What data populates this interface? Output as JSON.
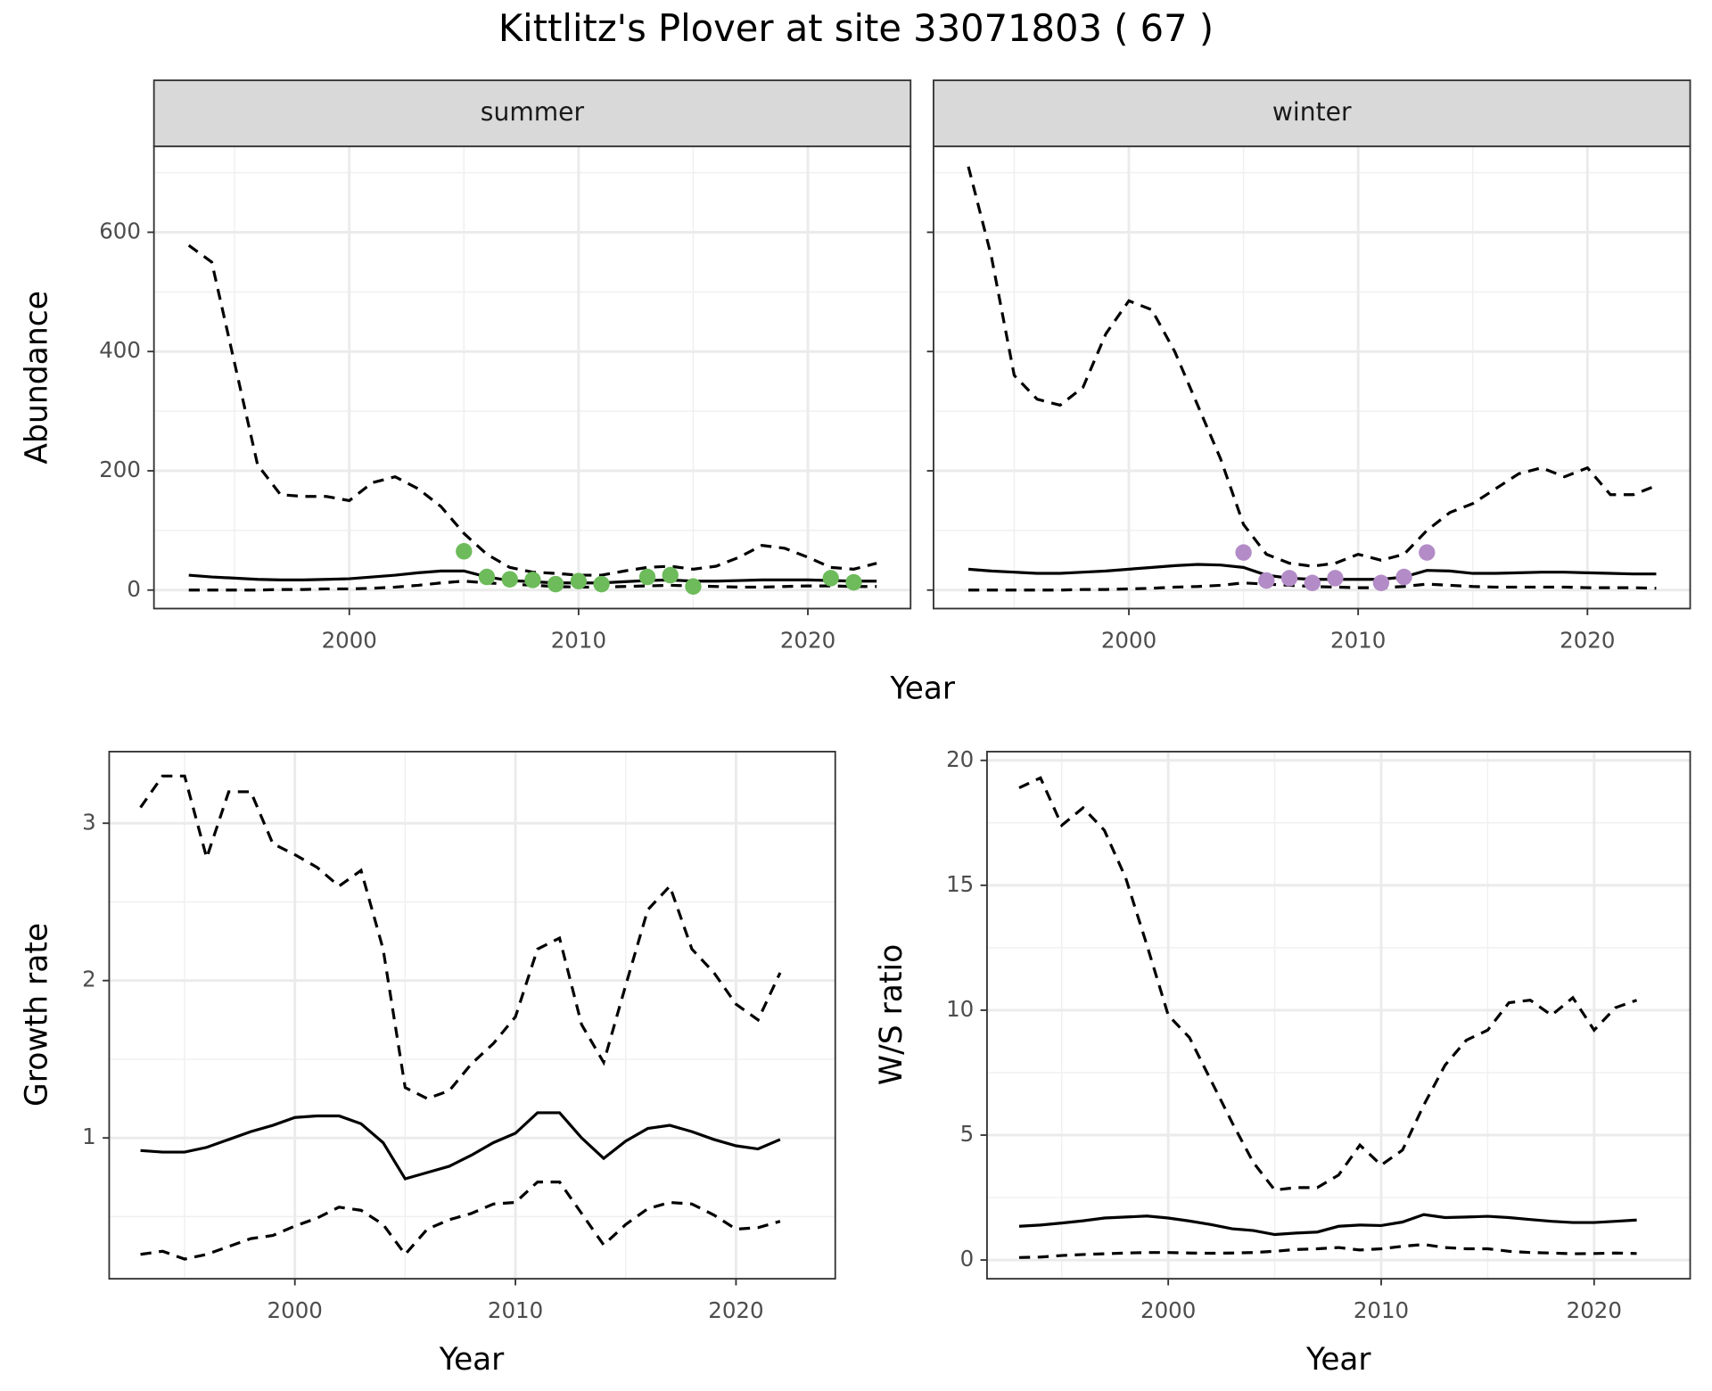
{
  "title": "Kittlitz's Plover at site 33071803 ( 67 )",
  "chart_data": [
    {
      "type": "line",
      "strip": "summer",
      "ylabel": "Abundance",
      "xlabel": "Year",
      "xlim": [
        1991.48,
        2024.48
      ],
      "ylim": [
        -31,
        744
      ],
      "xticks": [
        2000,
        2010,
        2020
      ],
      "minor_xticks": [
        1995,
        2005,
        2015
      ],
      "yticks": [
        0,
        200,
        400,
        600
      ],
      "minor_yticks": [
        100,
        300,
        500,
        700
      ],
      "show_ytick_labels": true,
      "grid": true,
      "x": [
        1993,
        1994,
        1995,
        1996,
        1997,
        1998,
        1999,
        2000,
        2001,
        2002,
        2003,
        2004,
        2005,
        2006,
        2007,
        2008,
        2009,
        2010,
        2011,
        2012,
        2013,
        2014,
        2015,
        2016,
        2017,
        2018,
        2019,
        2020,
        2021,
        2022,
        2023
      ],
      "series": [
        {
          "color": "#000000",
          "linestyle": "dashed",
          "values": [
            578,
            550,
            380,
            210,
            160,
            157,
            157,
            150,
            180,
            190,
            170,
            140,
            95,
            60,
            38,
            30,
            28,
            25,
            25,
            32,
            38,
            40,
            35,
            40,
            55,
            75,
            70,
            55,
            38,
            35,
            45
          ]
        },
        {
          "color": "#000000",
          "linestyle": "solid",
          "values": [
            25,
            22,
            20,
            18,
            17,
            17,
            18,
            19,
            22,
            25,
            29,
            32,
            32,
            22,
            16,
            14,
            12,
            12,
            12,
            14,
            16,
            17,
            15,
            15,
            16,
            17,
            17,
            17,
            16,
            15,
            15
          ]
        },
        {
          "color": "#000000",
          "linestyle": "dashed",
          "values": [
            0,
            0,
            0,
            0,
            1,
            1,
            2,
            2,
            3,
            5,
            8,
            12,
            15,
            12,
            10,
            8,
            6,
            5,
            5,
            6,
            7,
            8,
            7,
            6,
            5,
            5,
            6,
            7,
            7,
            6,
            6
          ]
        }
      ],
      "points": {
        "color": "#6dbb5b",
        "x": [
          2005,
          2006,
          2007,
          2008,
          2009,
          2010,
          2011,
          2013,
          2014,
          2015,
          2021,
          2022
        ],
        "values": [
          65,
          22,
          18,
          17,
          10,
          15,
          10,
          22,
          25,
          6,
          20,
          13
        ]
      }
    },
    {
      "type": "line",
      "strip": "winter",
      "xlim": [
        1991.48,
        2024.48
      ],
      "ylim": [
        -31,
        744
      ],
      "xticks": [
        2000,
        2010,
        2020
      ],
      "minor_xticks": [
        1995,
        2005,
        2015
      ],
      "yticks": [
        0,
        200,
        400,
        600
      ],
      "minor_yticks": [
        100,
        300,
        500,
        700
      ],
      "show_ytick_labels": false,
      "grid": true,
      "x": [
        1993,
        1994,
        1995,
        1996,
        1997,
        1998,
        1999,
        2000,
        2001,
        2002,
        2003,
        2004,
        2005,
        2006,
        2007,
        2008,
        2009,
        2010,
        2011,
        2012,
        2013,
        2014,
        2015,
        2016,
        2017,
        2018,
        2019,
        2020,
        2021,
        2022,
        2023
      ],
      "series": [
        {
          "color": "#000000",
          "linestyle": "dashed",
          "values": [
            710,
            560,
            360,
            320,
            310,
            340,
            430,
            485,
            470,
            400,
            310,
            220,
            110,
            60,
            45,
            40,
            45,
            60,
            50,
            60,
            100,
            130,
            145,
            170,
            195,
            205,
            190,
            205,
            160,
            160,
            175
          ]
        },
        {
          "color": "#000000",
          "linestyle": "solid",
          "values": [
            35,
            32,
            30,
            28,
            28,
            30,
            32,
            35,
            38,
            41,
            43,
            42,
            38,
            25,
            20,
            18,
            18,
            18,
            18,
            22,
            33,
            32,
            28,
            28,
            29,
            30,
            30,
            29,
            28,
            27,
            27
          ]
        },
        {
          "color": "#000000",
          "linestyle": "dashed",
          "values": [
            0,
            0,
            0,
            0,
            0,
            1,
            1,
            2,
            3,
            5,
            6,
            8,
            12,
            10,
            8,
            6,
            5,
            4,
            4,
            6,
            10,
            8,
            6,
            5,
            5,
            5,
            5,
            4,
            4,
            4,
            3
          ]
        }
      ],
      "points": {
        "color": "#b38cc7",
        "x": [
          2005,
          2006,
          2007,
          2008,
          2009,
          2011,
          2012,
          2013
        ],
        "values": [
          63,
          16,
          20,
          12,
          20,
          12,
          22,
          63
        ]
      }
    },
    {
      "type": "line",
      "ylabel": "Growth rate",
      "xlabel": "Year",
      "xlim": [
        1991.58,
        2024.5
      ],
      "ylim": [
        0.105,
        3.455
      ],
      "xticks": [
        2000,
        2010,
        2020
      ],
      "minor_xticks": [
        1995,
        2005,
        2015
      ],
      "yticks": [
        1,
        2,
        3
      ],
      "minor_yticks": [
        0.5,
        1.5,
        2.5
      ],
      "show_ytick_labels": true,
      "grid": true,
      "x": [
        1993,
        1994,
        1995,
        1996,
        1997,
        1998,
        1999,
        2000,
        2001,
        2002,
        2003,
        2004,
        2005,
        2006,
        2007,
        2008,
        2009,
        2010,
        2011,
        2012,
        2013,
        2014,
        2015,
        2016,
        2017,
        2018,
        2019,
        2020,
        2021,
        2022
      ],
      "series": [
        {
          "color": "#000000",
          "linestyle": "dashed",
          "values": [
            3.1,
            3.3,
            3.3,
            2.78,
            3.2,
            3.2,
            2.87,
            2.8,
            2.72,
            2.6,
            2.7,
            2.2,
            1.32,
            1.25,
            1.3,
            1.47,
            1.6,
            1.77,
            2.2,
            2.27,
            1.72,
            1.48,
            1.97,
            2.45,
            2.6,
            2.2,
            2.05,
            1.85,
            1.75,
            2.05
          ]
        },
        {
          "color": "#000000",
          "linestyle": "solid",
          "values": [
            0.92,
            0.91,
            0.91,
            0.94,
            0.99,
            1.04,
            1.08,
            1.13,
            1.14,
            1.14,
            1.09,
            0.97,
            0.74,
            0.78,
            0.82,
            0.89,
            0.97,
            1.03,
            1.16,
            1.16,
            1.0,
            0.87,
            0.98,
            1.06,
            1.08,
            1.04,
            0.99,
            0.95,
            0.93,
            0.99
          ]
        },
        {
          "color": "#000000",
          "linestyle": "dashed",
          "values": [
            0.26,
            0.28,
            0.23,
            0.26,
            0.31,
            0.36,
            0.38,
            0.44,
            0.49,
            0.56,
            0.54,
            0.45,
            0.26,
            0.42,
            0.48,
            0.52,
            0.58,
            0.59,
            0.72,
            0.72,
            0.52,
            0.32,
            0.45,
            0.55,
            0.59,
            0.58,
            0.51,
            0.42,
            0.43,
            0.47
          ]
        }
      ]
    },
    {
      "type": "line",
      "ylabel": "W/S ratio",
      "xlabel": "Year",
      "xlim": [
        1991.49,
        2024.51
      ],
      "ylim": [
        -0.75,
        20.35
      ],
      "xticks": [
        2000,
        2010,
        2020
      ],
      "minor_xticks": [
        1995,
        2005,
        2015
      ],
      "yticks": [
        0,
        5,
        10,
        15,
        20
      ],
      "minor_yticks": [
        2.5,
        7.5,
        12.5,
        17.5
      ],
      "show_ytick_labels": true,
      "grid": true,
      "x": [
        1993,
        1994,
        1995,
        1996,
        1997,
        1998,
        1999,
        2000,
        2001,
        2002,
        2003,
        2004,
        2005,
        2006,
        2007,
        2008,
        2009,
        2010,
        2011,
        2012,
        2013,
        2014,
        2015,
        2016,
        2017,
        2018,
        2019,
        2020,
        2021,
        2022
      ],
      "series": [
        {
          "color": "#000000",
          "linestyle": "dashed",
          "values": [
            18.9,
            19.3,
            17.4,
            18.1,
            17.2,
            15.3,
            12.6,
            9.8,
            8.9,
            7.2,
            5.5,
            3.9,
            2.8,
            2.9,
            2.9,
            3.4,
            4.6,
            3.8,
            4.4,
            6.2,
            7.8,
            8.8,
            9.2,
            10.3,
            10.4,
            9.8,
            10.5,
            9.2,
            10.1,
            10.4
          ]
        },
        {
          "color": "#000000",
          "linestyle": "solid",
          "values": [
            1.35,
            1.4,
            1.48,
            1.57,
            1.68,
            1.72,
            1.76,
            1.68,
            1.56,
            1.42,
            1.25,
            1.18,
            1.02,
            1.08,
            1.12,
            1.35,
            1.4,
            1.38,
            1.52,
            1.82,
            1.7,
            1.72,
            1.75,
            1.7,
            1.62,
            1.55,
            1.5,
            1.5,
            1.55,
            1.6
          ]
        },
        {
          "color": "#000000",
          "linestyle": "dashed",
          "values": [
            0.1,
            0.12,
            0.18,
            0.22,
            0.25,
            0.28,
            0.3,
            0.3,
            0.28,
            0.27,
            0.28,
            0.3,
            0.35,
            0.42,
            0.45,
            0.5,
            0.4,
            0.45,
            0.55,
            0.62,
            0.5,
            0.45,
            0.45,
            0.35,
            0.3,
            0.28,
            0.25,
            0.26,
            0.28,
            0.26
          ]
        }
      ]
    }
  ]
}
